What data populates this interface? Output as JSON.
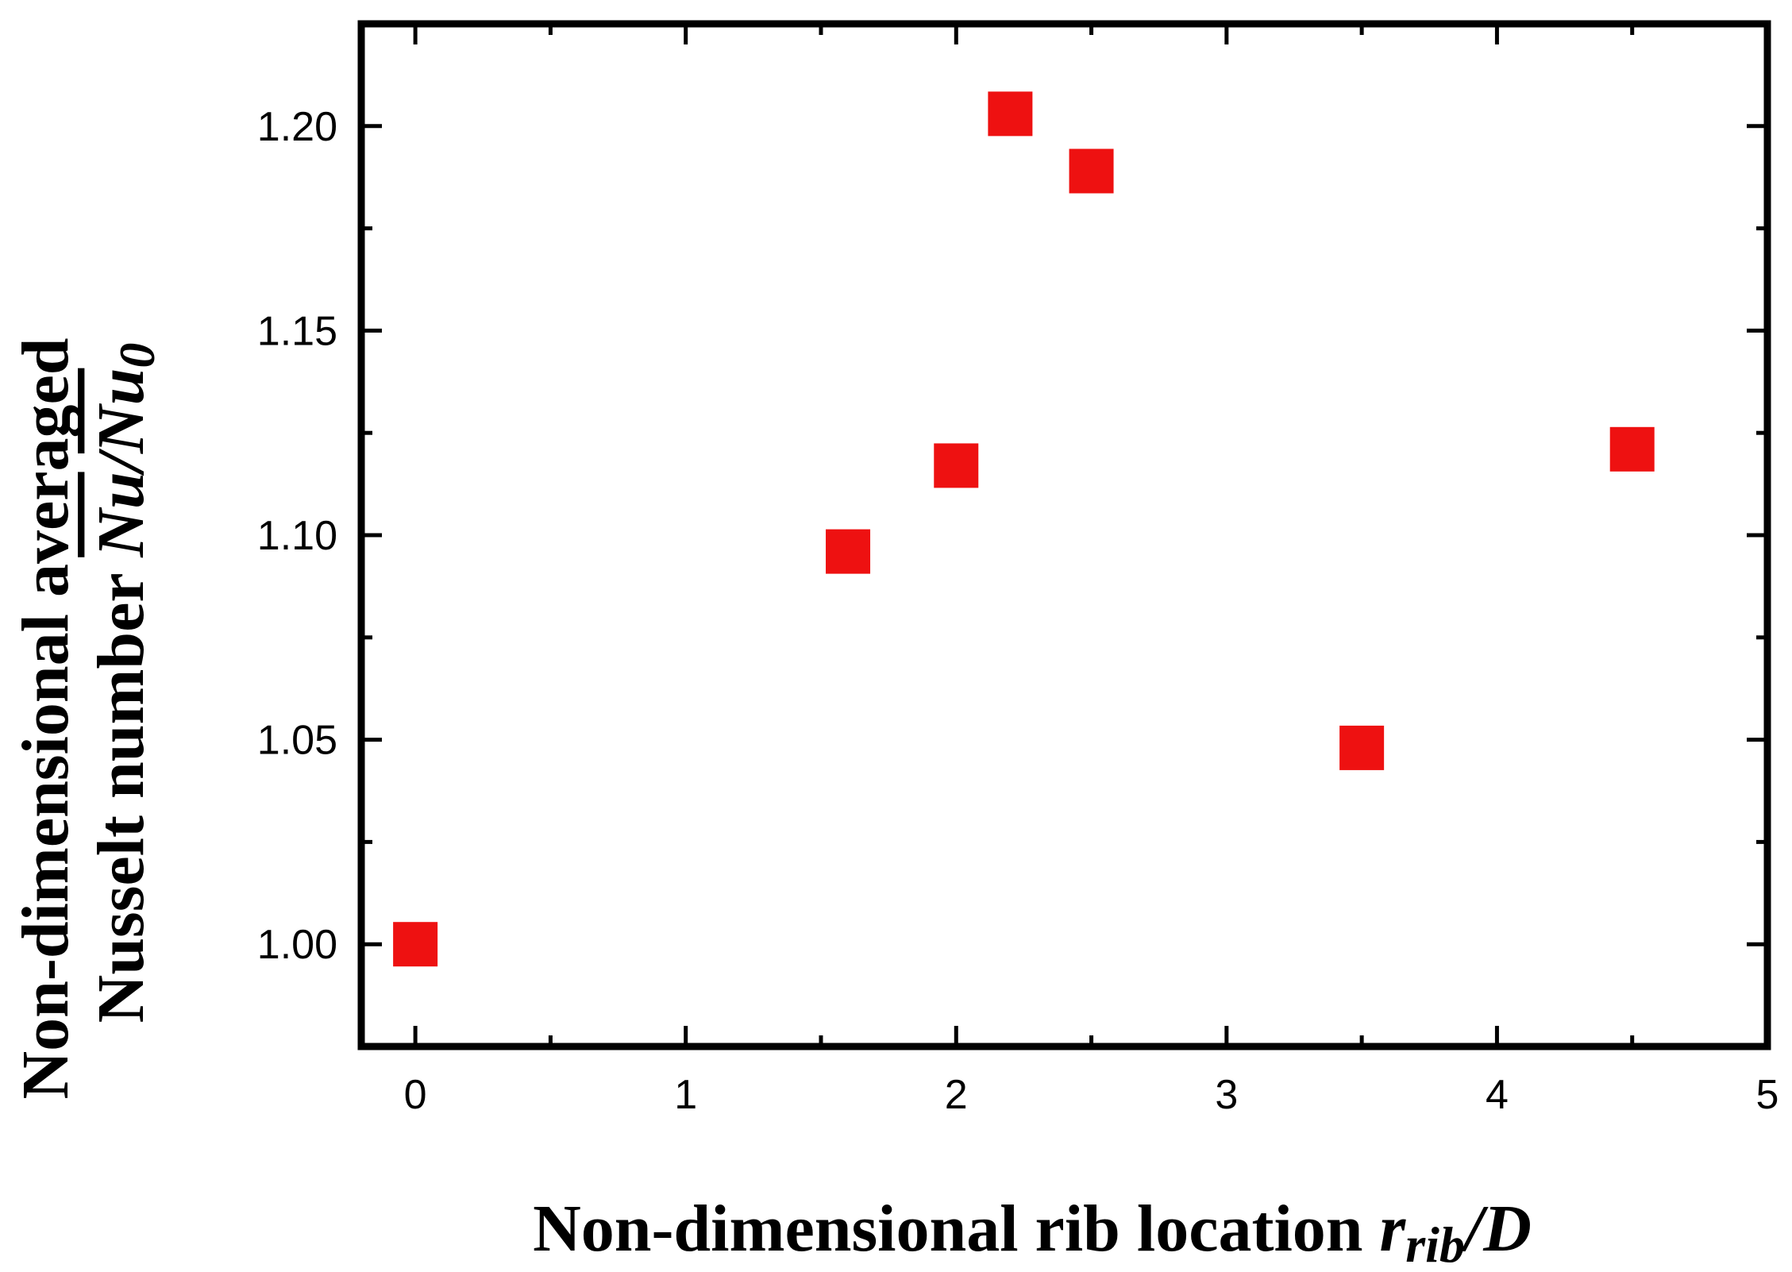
{
  "chart_data": {
    "type": "scatter",
    "xlabel": {
      "prefix": "Non-dimensional rib location ",
      "var": "r",
      "sub": "rib",
      "suffix": "/D"
    },
    "ylabel": {
      "line1": "Non-dimensional averaged",
      "line2_prefix": "Nusselt number ",
      "line2_num": "Nu",
      "line2_slash": "/",
      "line2_den": "Nu",
      "line2_den_sub": "0"
    },
    "xlim": [
      -0.2,
      5
    ],
    "ylim": [
      0.975,
      1.225
    ],
    "x_ticks": [
      {
        "value": 0,
        "label": "0"
      },
      {
        "value": 1,
        "label": "1"
      },
      {
        "value": 2,
        "label": "2"
      },
      {
        "value": 3,
        "label": "3"
      },
      {
        "value": 4,
        "label": "4"
      },
      {
        "value": 5,
        "label": "5"
      }
    ],
    "x_minor_ticks": [
      0.5,
      1.5,
      2.5,
      3.5,
      4.5
    ],
    "y_ticks": [
      {
        "value": 1.0,
        "label": "1.00"
      },
      {
        "value": 1.05,
        "label": "1.05"
      },
      {
        "value": 1.1,
        "label": "1.10"
      },
      {
        "value": 1.15,
        "label": "1.15"
      },
      {
        "value": 1.2,
        "label": "1.20"
      }
    ],
    "y_minor_ticks": [
      1.025,
      1.075,
      1.125,
      1.175
    ],
    "grid": false,
    "marker": "square",
    "marker_color": "#ee1111",
    "points": [
      {
        "x": 0.0,
        "y": 1.0
      },
      {
        "x": 1.6,
        "y": 1.096
      },
      {
        "x": 2.0,
        "y": 1.117
      },
      {
        "x": 2.2,
        "y": 1.203
      },
      {
        "x": 2.5,
        "y": 1.189
      },
      {
        "x": 3.5,
        "y": 1.048
      },
      {
        "x": 4.5,
        "y": 1.121
      }
    ]
  }
}
